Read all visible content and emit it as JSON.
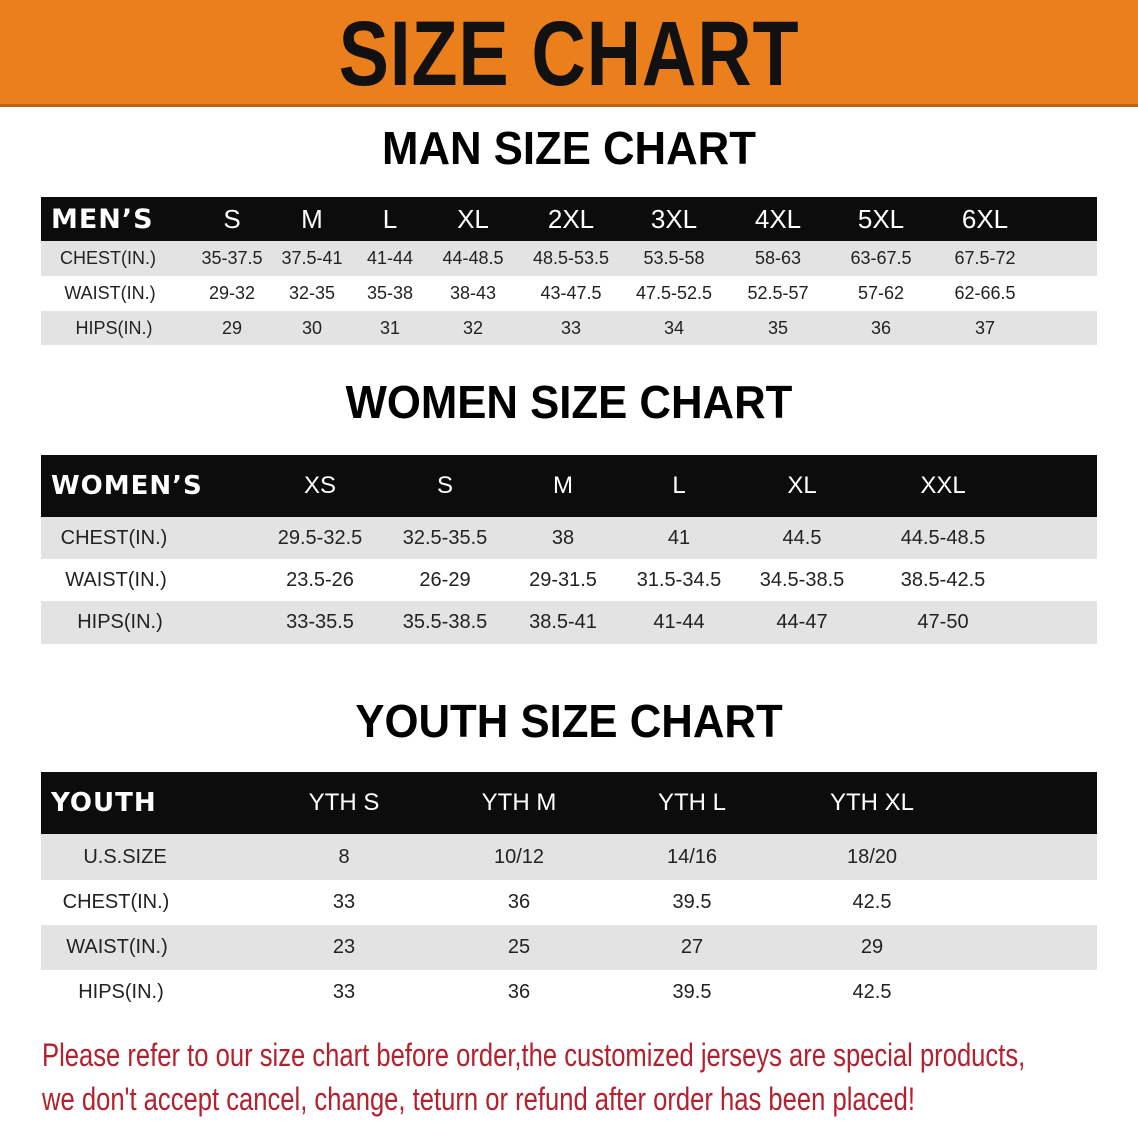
{
  "title": "SIZE CHART",
  "colors": {
    "banner": "#ea7f1c",
    "header_row": "#0c0c0c",
    "stripe": "#e3e3e3",
    "notice": "#b3202e"
  },
  "men": {
    "title": "MAN SIZE CHART",
    "header": [
      "MEN’S",
      "S",
      "M",
      "L",
      "XL",
      "2XL",
      "3XL",
      "4XL",
      "5XL",
      "6XL"
    ],
    "rows": [
      [
        "CHEST(IN.)",
        "35-37.5",
        "37.5-41",
        "41-44",
        "44-48.5",
        "48.5-53.5",
        "53.5-58",
        "58-63",
        "63-67.5",
        "67.5-72"
      ],
      [
        "WAIST(IN.)",
        "29-32",
        "32-35",
        "35-38",
        "38-43",
        "43-47.5",
        "47.5-52.5",
        "52.5-57",
        "57-62",
        "62-66.5"
      ],
      [
        "HIPS(IN.)",
        "29",
        "30",
        "31",
        "32",
        "33",
        "34",
        "35",
        "36",
        "37"
      ]
    ]
  },
  "women": {
    "title": "WOMEN SIZE CHART",
    "header": [
      "WOMEN’S",
      "XS",
      "S",
      "M",
      "L",
      "XL",
      "XXL"
    ],
    "rows": [
      [
        "CHEST(IN.)",
        "29.5-32.5",
        "32.5-35.5",
        "38",
        "41",
        "44.5",
        "44.5-48.5"
      ],
      [
        "WAIST(IN.)",
        "23.5-26",
        "26-29",
        "29-31.5",
        "31.5-34.5",
        "34.5-38.5",
        "38.5-42.5"
      ],
      [
        "HIPS(IN.)",
        "33-35.5",
        "35.5-38.5",
        "38.5-41",
        "41-44",
        "44-47",
        "47-50"
      ]
    ]
  },
  "youth": {
    "title": "YOUTH SIZE CHART",
    "header": [
      "YOUTH",
      "YTH S",
      "YTH M",
      "YTH L",
      "YTH XL"
    ],
    "rows": [
      [
        "U.S.SIZE",
        "8",
        "10/12",
        "14/16",
        "18/20"
      ],
      [
        "CHEST(IN.)",
        "33",
        "36",
        "39.5",
        "42.5"
      ],
      [
        "WAIST(IN.)",
        "23",
        "25",
        "27",
        "29"
      ],
      [
        "HIPS(IN.)",
        "33",
        "36",
        "39.5",
        "42.5"
      ]
    ]
  },
  "notice": {
    "line1": "Please refer to our size chart before order,the customized jerseys are special products,",
    "line2": "we don't accept cancel, change, teturn or refund after order has been placed!"
  }
}
